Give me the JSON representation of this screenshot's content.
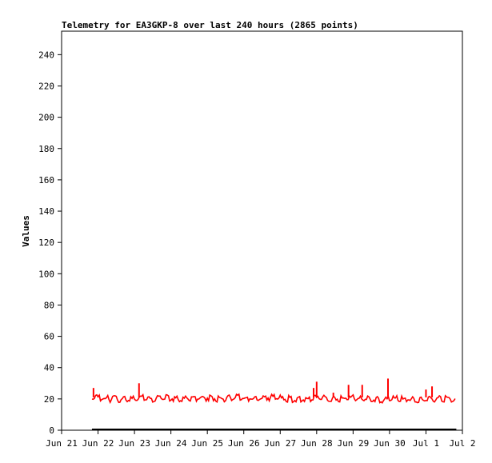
{
  "chart_data": {
    "type": "line",
    "title": "Telemetry for EA3GKP-8 over last 240 hours (2865 points)",
    "xlabel": "",
    "ylabel": "Values",
    "x_ticks": [
      "Jun 21",
      "Jun 22",
      "Jun 23",
      "Jun 24",
      "Jun 25",
      "Jun 26",
      "Jun 27",
      "Jun 28",
      "Jun 29",
      "Jun 30",
      "Jul 1",
      "Jul 2"
    ],
    "xlim": [
      "2024-06-21T00:00",
      "2024-07-02T00:00"
    ],
    "y_ticks": [
      0,
      20,
      40,
      60,
      80,
      100,
      120,
      140,
      160,
      180,
      200,
      220,
      240
    ],
    "ylim": [
      0,
      255
    ],
    "grid": false,
    "legend": "none",
    "series": [
      {
        "color": "#ff0000",
        "x": [
          "2024-06-21T20:00",
          "2024-06-22T08:00",
          "2024-06-22T20:00",
          "2024-06-23T04:00",
          "2024-06-23T12:00",
          "2024-06-23T20:00",
          "2024-06-24T08:00",
          "2024-06-24T20:00",
          "2024-06-25T08:00",
          "2024-06-25T20:00",
          "2024-06-26T08:00",
          "2024-06-26T20:00",
          "2024-06-27T08:00",
          "2024-06-27T20:00",
          "2024-06-28T00:00",
          "2024-06-28T12:00",
          "2024-06-28T20:00",
          "2024-06-29T04:00",
          "2024-06-29T12:00",
          "2024-06-29T20:00",
          "2024-06-30T00:00",
          "2024-06-30T12:00",
          "2024-06-30T20:00",
          "2024-07-01T04:00",
          "2024-07-01T12:00",
          "2024-07-01T20:00"
        ],
        "y": [
          22,
          21,
          21,
          22,
          21,
          22,
          21,
          22,
          21,
          22,
          21,
          22,
          21,
          21,
          22,
          21,
          22,
          21,
          21,
          20,
          21,
          21,
          20,
          21,
          21,
          21
        ],
        "spikes": [
          {
            "x": "2024-06-21T21:00",
            "y": 27
          },
          {
            "x": "2024-06-23T03:00",
            "y": 30
          },
          {
            "x": "2024-06-27T22:00",
            "y": 27
          },
          {
            "x": "2024-06-28T00:00",
            "y": 31
          },
          {
            "x": "2024-06-28T11:00",
            "y": 24
          },
          {
            "x": "2024-06-28T21:00",
            "y": 29
          },
          {
            "x": "2024-06-29T06:00",
            "y": 29
          },
          {
            "x": "2024-06-29T23:00",
            "y": 33
          },
          {
            "x": "2024-07-01T00:00",
            "y": 26
          },
          {
            "x": "2024-07-01T04:00",
            "y": 28
          }
        ]
      },
      {
        "color": "#000000",
        "x": [
          "2024-06-21T20:00",
          "2024-07-01T20:00"
        ],
        "y": [
          0,
          0
        ]
      }
    ]
  }
}
